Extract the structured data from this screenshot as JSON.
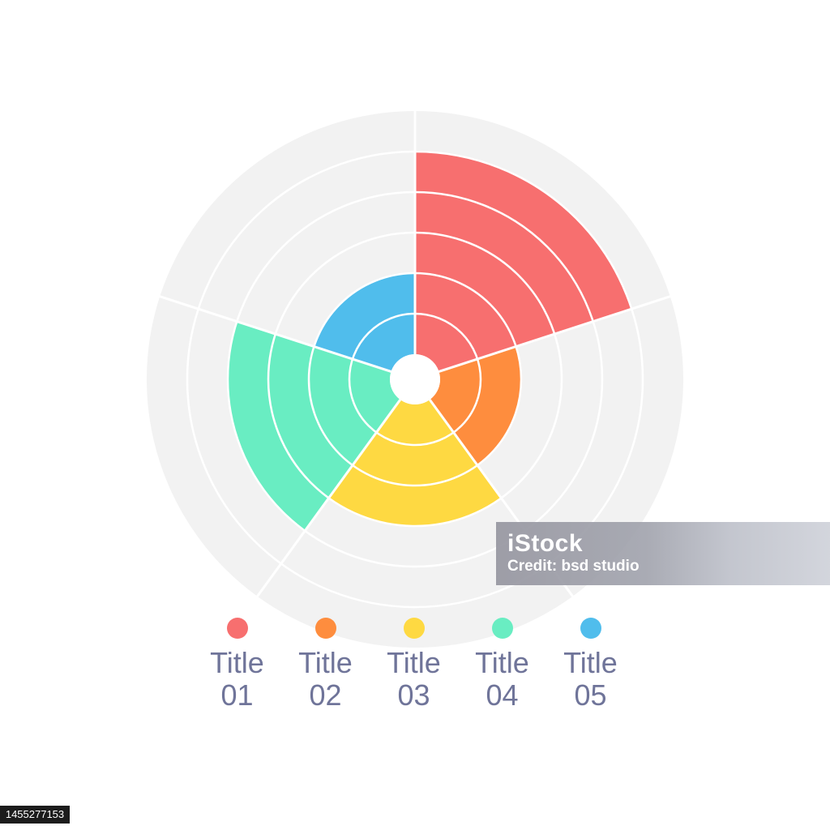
{
  "chart_data": {
    "type": "polar-area",
    "title": "",
    "categories": [
      "Title 01",
      "Title 02",
      "Title 03",
      "Title 04",
      "Title 05"
    ],
    "values": [
      5,
      2,
      3,
      4,
      2
    ],
    "max_value": 6,
    "rings": 6,
    "colors": [
      "#f76f6f",
      "#fe8d3e",
      "#fed942",
      "#69edc2",
      "#50bdec"
    ],
    "background_color": "#f2f2f2",
    "legend_position": "bottom"
  },
  "legend": [
    {
      "label": "Title\n01",
      "color": "#f76f6f"
    },
    {
      "label": "Title\n02",
      "color": "#fe8d3e"
    },
    {
      "label": "Title\n03",
      "color": "#fed942"
    },
    {
      "label": "Title\n04",
      "color": "#69edc2"
    },
    {
      "label": "Title\n05",
      "color": "#50bdec"
    }
  ],
  "watermark": {
    "brand": "iStock",
    "credit": "Credit: bsd studio"
  },
  "stock_id": "1455277153"
}
